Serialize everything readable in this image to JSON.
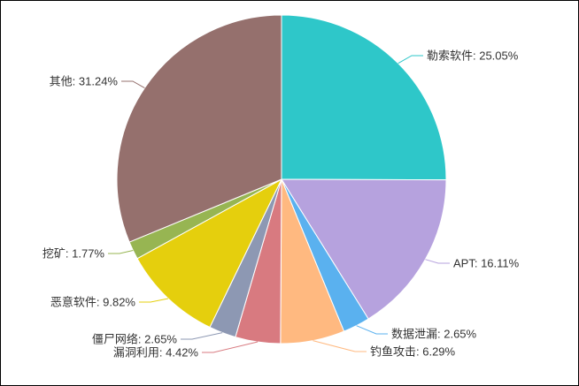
{
  "chart": {
    "background_color": "#ffffff",
    "label_text_color": "#333333",
    "slice_border_color": "#ffffff"
  },
  "chart_data": {
    "type": "pie",
    "title": "",
    "legend": "none",
    "start_angle": "top, clockwise",
    "label_format": "name: percent%",
    "slices": [
      {
        "name": "勒索软件",
        "value": 25.05,
        "label": "勒索软件: 25.05%",
        "color": "#2ec7c9"
      },
      {
        "name": "APT",
        "value": 16.11,
        "label": "APT: 16.11%",
        "color": "#b6a2de"
      },
      {
        "name": "数据泄漏",
        "value": 2.65,
        "label": "数据泄漏: 2.65%",
        "color": "#5ab1ef"
      },
      {
        "name": "钓鱼攻击",
        "value": 6.29,
        "label": "钓鱼攻击: 6.29%",
        "color": "#ffb980"
      },
      {
        "name": "漏洞利用",
        "value": 4.42,
        "label": "漏洞利用: 4.42%",
        "color": "#d87a80"
      },
      {
        "name": "僵尸网络",
        "value": 2.65,
        "label": "僵尸网络: 2.65%",
        "color": "#8d98b3"
      },
      {
        "name": "恶意软件",
        "value": 9.82,
        "label": "恶意软件: 9.82%",
        "color": "#e5cf0d"
      },
      {
        "name": "挖矿",
        "value": 1.77,
        "label": "挖矿: 1.77%",
        "color": "#97b552"
      },
      {
        "name": "其他",
        "value": 31.24,
        "label": "其他: 31.24%",
        "color": "#95706d"
      }
    ]
  }
}
